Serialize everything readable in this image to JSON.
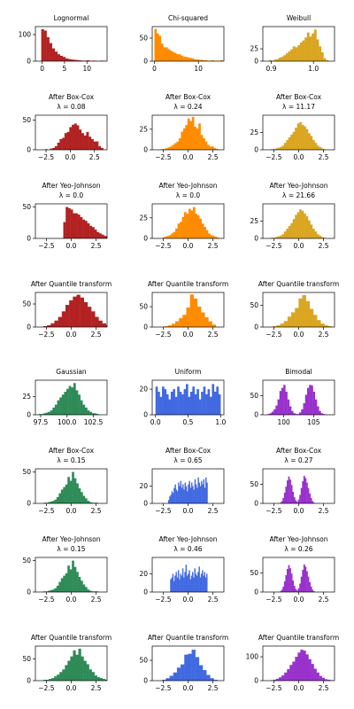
{
  "chart_data": [
    {
      "type": "bar",
      "title": [
        "Lognormal"
      ],
      "color": "#b22222",
      "xlim": [
        -1.5,
        14.5
      ],
      "ylim": [
        0,
        130
      ],
      "xticks": [
        0,
        5,
        10
      ],
      "xticklabels": [
        "0",
        "5",
        "10"
      ],
      "yticks": [
        0,
        100
      ],
      "yticklabels": [
        "0",
        "100"
      ],
      "binStart": -0.2,
      "binWidth": 0.6,
      "values": [
        120,
        115,
        90,
        68,
        48,
        36,
        26,
        20,
        16,
        10,
        8,
        6,
        5,
        4,
        3,
        2,
        2,
        3,
        1,
        2,
        1,
        0,
        2,
        1
      ]
    },
    {
      "type": "bar",
      "title": [
        "Chi-squared"
      ],
      "color": "#ff8c00",
      "xlim": [
        -0.5,
        15.8
      ],
      "ylim": [
        0,
        75
      ],
      "xticks": [
        0,
        10
      ],
      "xticklabels": [
        "0",
        "10"
      ],
      "yticks": [
        0,
        50
      ],
      "yticklabels": [
        "0",
        "50"
      ],
      "binStart": 0.0,
      "binWidth": 0.5,
      "values": [
        70,
        60,
        55,
        38,
        30,
        30,
        26,
        23,
        20,
        18,
        15,
        15,
        12,
        10,
        9,
        8,
        7,
        6,
        4,
        4,
        3,
        3,
        2,
        2,
        1,
        1,
        2,
        1,
        1,
        1,
        2
      ]
    },
    {
      "type": "bar",
      "title": [
        "Weibull"
      ],
      "color": "#daa520",
      "xlim": [
        0.88,
        1.05
      ],
      "ylim": [
        0,
        70
      ],
      "xticks": [
        0.9,
        1.0
      ],
      "xticklabels": [
        "0.9",
        "1.0"
      ],
      "yticks": [
        0,
        25
      ],
      "yticklabels": [
        "0",
        "25"
      ],
      "binStart": 0.895,
      "binWidth": 0.0056,
      "values": [
        2,
        1,
        3,
        4,
        7,
        9,
        12,
        16,
        20,
        24,
        30,
        28,
        32,
        38,
        42,
        48,
        58,
        50,
        56,
        64,
        44,
        30,
        18,
        6,
        2
      ]
    },
    {
      "type": "bar",
      "title": [
        "After Box-Cox",
        "λ = 0.08"
      ],
      "color": "#b22222",
      "xlim": [
        -3.6,
        3.8
      ],
      "ylim": [
        0,
        58
      ],
      "xticks": [
        -2.5,
        0,
        2.5
      ],
      "xticklabels": [
        "−2.5",
        "0.0",
        "2.5"
      ],
      "yticks": [
        0,
        50
      ],
      "yticklabels": [
        "0",
        "50"
      ],
      "binStart": -2.6,
      "binWidth": 0.25,
      "values": [
        1,
        0,
        2,
        3,
        6,
        12,
        18,
        20,
        28,
        30,
        38,
        42,
        44,
        41,
        34,
        28,
        24,
        30,
        22,
        18,
        14,
        14,
        6,
        3
      ]
    },
    {
      "type": "bar",
      "title": [
        "After Box-Cox",
        "λ = 0.24"
      ],
      "color": "#ff8c00",
      "xlim": [
        -3.6,
        3.6
      ],
      "ylim": [
        0,
        42
      ],
      "xticks": [
        -2.5,
        0,
        2.5
      ],
      "xticklabels": [
        "−2.5",
        "0.0",
        "2.5"
      ],
      "yticks": [
        0,
        25
      ],
      "yticklabels": [
        "0",
        "25"
      ],
      "binStart": -2.7,
      "binWidth": 0.22,
      "values": [
        1,
        1,
        2,
        3,
        4,
        6,
        8,
        10,
        14,
        22,
        26,
        30,
        38,
        35,
        40,
        28,
        26,
        32,
        18,
        14,
        10,
        6,
        4,
        4,
        2,
        1
      ]
    },
    {
      "type": "bar",
      "title": [
        "After Box-Cox",
        "λ = 11.17"
      ],
      "color": "#daa520",
      "xlim": [
        -3.6,
        3.6
      ],
      "ylim": [
        0,
        50
      ],
      "xticks": [
        -2.5,
        0,
        2.5
      ],
      "xticklabels": [
        "−2.5",
        "0.0",
        "2.5"
      ],
      "yticks": [
        0,
        25
      ],
      "yticklabels": [
        "0",
        "25"
      ],
      "binStart": -2.8,
      "binWidth": 0.22,
      "values": [
        1,
        1,
        2,
        3,
        4,
        6,
        10,
        14,
        18,
        22,
        26,
        32,
        38,
        40,
        36,
        34,
        30,
        24,
        20,
        14,
        10,
        6,
        4,
        2,
        1
      ]
    },
    {
      "type": "bar",
      "title": [
        "After Yeo-Johnson",
        "λ = 0.0"
      ],
      "color": "#b22222",
      "xlim": [
        -3.6,
        3.6
      ],
      "ylim": [
        0,
        55
      ],
      "xticks": [
        -2.5,
        0,
        2.5
      ],
      "xticklabels": [
        "−2.5",
        "0.0",
        "2.5"
      ],
      "yticks": [
        0,
        50
      ],
      "yticklabels": [
        "0",
        "50"
      ],
      "binStart": -0.8,
      "binWidth": 0.24,
      "values": [
        26,
        50,
        48,
        46,
        40,
        40,
        38,
        34,
        30,
        28,
        24,
        20,
        18,
        14,
        10,
        8,
        6,
        4,
        3,
        2
      ]
    },
    {
      "type": "bar",
      "title": [
        "After Yeo-Johnson",
        "λ = 0.0"
      ],
      "color": "#ff8c00",
      "xlim": [
        -3.6,
        3.6
      ],
      "ylim": [
        0,
        42
      ],
      "xticks": [
        -2.5,
        0,
        2.5
      ],
      "xticklabels": [
        "−2.5",
        "0.0",
        "2.5"
      ],
      "yticks": [
        0,
        25
      ],
      "yticklabels": [
        "0",
        "25"
      ],
      "binStart": -2.6,
      "binWidth": 0.22,
      "values": [
        1,
        2,
        3,
        4,
        6,
        8,
        12,
        18,
        20,
        26,
        32,
        30,
        36,
        34,
        38,
        30,
        28,
        24,
        18,
        14,
        10,
        6,
        4,
        3,
        2,
        1
      ]
    },
    {
      "type": "bar",
      "title": [
        "After Yeo-Johnson",
        "λ = 21.66"
      ],
      "color": "#daa520",
      "xlim": [
        -3.6,
        3.6
      ],
      "ylim": [
        0,
        50
      ],
      "xticks": [
        -2.5,
        0,
        2.5
      ],
      "xticklabels": [
        "−2.5",
        "0.0",
        "2.5"
      ],
      "yticks": [
        0,
        25
      ],
      "yticklabels": [
        "0",
        "25"
      ],
      "binStart": -2.8,
      "binWidth": 0.22,
      "values": [
        1,
        1,
        2,
        3,
        4,
        6,
        10,
        14,
        18,
        22,
        28,
        34,
        38,
        42,
        40,
        36,
        32,
        26,
        20,
        14,
        10,
        6,
        4,
        2,
        1
      ]
    },
    {
      "type": "bar",
      "title": [
        "After Quantile transform"
      ],
      "color": "#b22222",
      "xlim": [
        -3.6,
        3.6
      ],
      "ylim": [
        0,
        75
      ],
      "xticks": [
        -2.5,
        0,
        2.5
      ],
      "xticklabels": [
        "−2.5",
        "0.0",
        "2.5"
      ],
      "yticks": [
        0,
        50
      ],
      "yticklabels": [
        "0",
        "50"
      ],
      "binStart": -2.8,
      "binWidth": 0.37,
      "values": [
        2,
        4,
        8,
        14,
        22,
        34,
        48,
        58,
        66,
        70,
        64,
        54,
        44,
        34,
        22,
        14,
        8,
        4
      ]
    },
    {
      "type": "bar",
      "title": [
        "After Quantile transform"
      ],
      "color": "#ff8c00",
      "xlim": [
        -3.6,
        3.6
      ],
      "ylim": [
        0,
        85
      ],
      "xticks": [
        -2.5,
        0,
        2.5
      ],
      "xticklabels": [
        "−2.5",
        "0.0",
        "2.5"
      ],
      "yticks": [
        0,
        50
      ],
      "yticklabels": [
        "0",
        "50"
      ],
      "binStart": -2.4,
      "binWidth": 0.37,
      "values": [
        2,
        4,
        8,
        14,
        22,
        30,
        48,
        80,
        70,
        50,
        36,
        24,
        14,
        6
      ]
    },
    {
      "type": "bar",
      "title": [
        "After Quantile transform"
      ],
      "color": "#daa520",
      "xlim": [
        -3.6,
        3.6
      ],
      "ylim": [
        0,
        80
      ],
      "xticks": [
        -2.5,
        0,
        2.5
      ],
      "xticklabels": [
        "−2.5",
        "0.0",
        "2.5"
      ],
      "yticks": [
        0,
        50
      ],
      "yticklabels": [
        "0",
        "50"
      ],
      "binStart": -2.6,
      "binWidth": 0.37,
      "values": [
        2,
        4,
        8,
        14,
        24,
        34,
        44,
        66,
        74,
        60,
        42,
        28,
        16,
        8,
        4,
        2
      ]
    },
    {
      "type": "bar",
      "title": [
        "Gaussian"
      ],
      "color": "#2e8b57",
      "xlim": [
        97.0,
        103.8
      ],
      "ylim": [
        0,
        48
      ],
      "xticks": [
        97.5,
        100.0,
        102.5
      ],
      "xticklabels": [
        "97.5",
        "100.0",
        "102.5"
      ],
      "yticks": [
        0,
        25
      ],
      "yticklabels": [
        "0",
        "25"
      ],
      "binStart": 97.3,
      "binWidth": 0.22,
      "values": [
        1,
        1,
        2,
        3,
        4,
        6,
        10,
        14,
        20,
        24,
        28,
        32,
        36,
        40,
        38,
        44,
        34,
        28,
        20,
        14,
        10,
        6,
        4,
        2,
        2,
        1
      ]
    },
    {
      "type": "bar",
      "title": [
        "Uniform"
      ],
      "color": "#4169e1",
      "xlim": [
        -0.05,
        1.05
      ],
      "ylim": [
        0,
        27
      ],
      "xticks": [
        0.0,
        0.5,
        1.0
      ],
      "xticklabels": [
        "0.0",
        "0.5",
        "1.0"
      ],
      "yticks": [
        0,
        20
      ],
      "yticklabels": [
        "0",
        "20"
      ],
      "binStart": 0.0,
      "binWidth": 0.0333,
      "values": [
        22,
        18,
        14,
        22,
        20,
        16,
        12,
        18,
        20,
        14,
        22,
        18,
        16,
        20,
        24,
        14,
        18,
        22,
        16,
        20,
        12,
        18,
        22,
        16,
        20,
        14,
        24,
        18,
        22,
        16
      ]
    },
    {
      "type": "bar",
      "title": [
        "Bimodal"
      ],
      "color": "#9932cc",
      "xlim": [
        96.5,
        108.5
      ],
      "ylim": [
        0,
        90
      ],
      "xticks": [
        100,
        105
      ],
      "xticklabels": [
        "100",
        "105"
      ],
      "yticks": [
        0,
        50
      ],
      "yticklabels": [
        "0",
        "50"
      ],
      "binStart": 97.3,
      "binWidth": 0.33,
      "values": [
        2,
        4,
        8,
        14,
        24,
        40,
        62,
        70,
        78,
        60,
        40,
        22,
        10,
        4,
        2,
        2,
        6,
        14,
        30,
        52,
        70,
        78,
        76,
        60,
        40,
        22,
        10,
        4,
        2,
        1
      ]
    },
    {
      "type": "bar",
      "title": [
        "After Box-Cox",
        "λ = 0.15"
      ],
      "color": "#2e8b57",
      "xlim": [
        -3.6,
        3.6
      ],
      "ylim": [
        0,
        55
      ],
      "xticks": [
        -2.5,
        0,
        2.5
      ],
      "xticklabels": [
        "−2.5",
        "0.0",
        "2.5"
      ],
      "yticks": [
        0,
        50
      ],
      "yticklabels": [
        "0",
        "50"
      ],
      "binStart": -2.8,
      "binWidth": 0.22,
      "values": [
        1,
        1,
        2,
        3,
        4,
        6,
        10,
        16,
        22,
        26,
        30,
        42,
        36,
        50,
        40,
        32,
        24,
        18,
        12,
        8,
        4,
        2,
        1,
        1,
        1
      ]
    },
    {
      "type": "bar",
      "title": [
        "After Box-Cox",
        "λ = 0.65"
      ],
      "color": "#4169e1",
      "xlim": [
        -3.6,
        3.6
      ],
      "ylim": [
        0,
        40
      ],
      "xticks": [
        -2.5,
        0,
        2.5
      ],
      "xticklabels": [
        "−2.5",
        "0.0",
        "2.5"
      ],
      "yticks": [
        0,
        20
      ],
      "yticklabels": [
        "0",
        "20"
      ],
      "binStart": -2.0,
      "binWidth": 0.11,
      "values": [
        4,
        8,
        10,
        14,
        12,
        18,
        22,
        16,
        14,
        24,
        20,
        26,
        18,
        22,
        16,
        24,
        20,
        14,
        22,
        26,
        18,
        24,
        20,
        16,
        28,
        22,
        18,
        30,
        24,
        20,
        26,
        22,
        28,
        18,
        30,
        24
      ]
    },
    {
      "type": "bar",
      "title": [
        "After Box-Cox",
        "λ = 0.27"
      ],
      "color": "#9932cc",
      "xlim": [
        -3.6,
        3.6
      ],
      "ylim": [
        0,
        90
      ],
      "xticks": [
        -2.5,
        0,
        2.5
      ],
      "xticklabels": [
        "−2.5",
        "0.0",
        "2.5"
      ],
      "yticks": [
        0,
        50
      ],
      "yticklabels": [
        "0",
        "50"
      ],
      "binStart": -1.9,
      "binWidth": 0.14,
      "values": [
        2,
        6,
        14,
        28,
        44,
        60,
        70,
        62,
        48,
        30,
        16,
        8,
        4,
        10,
        22,
        40,
        58,
        72,
        66,
        54,
        40,
        26,
        14,
        6,
        2
      ]
    },
    {
      "type": "bar",
      "title": [
        "After Yeo-Johnson",
        "λ = 0.15"
      ],
      "color": "#2e8b57",
      "xlim": [
        -3.6,
        3.6
      ],
      "ylim": [
        0,
        55
      ],
      "xticks": [
        -2.5,
        0,
        2.5
      ],
      "xticklabels": [
        "−2.5",
        "0.0",
        "2.5"
      ],
      "yticks": [
        0,
        50
      ],
      "yticklabels": [
        "0",
        "50"
      ],
      "binStart": -2.8,
      "binWidth": 0.22,
      "values": [
        1,
        1,
        2,
        3,
        4,
        6,
        10,
        16,
        22,
        26,
        30,
        42,
        36,
        50,
        40,
        32,
        24,
        18,
        12,
        8,
        4,
        2,
        1,
        1,
        1
      ]
    },
    {
      "type": "bar",
      "title": [
        "After Yeo-Johnson",
        "λ = 0.46"
      ],
      "color": "#4169e1",
      "xlim": [
        -3.6,
        3.6
      ],
      "ylim": [
        0,
        38
      ],
      "xticks": [
        -2.5,
        0,
        2.5
      ],
      "xticklabels": [
        "−2.5",
        "0.0",
        "2.5"
      ],
      "yticks": [
        0,
        20
      ],
      "yticklabels": [
        "0",
        "20"
      ],
      "binStart": -1.8,
      "binWidth": 0.11,
      "values": [
        14,
        16,
        20,
        12,
        18,
        22,
        16,
        24,
        14,
        20,
        18,
        26,
        16,
        22,
        30,
        18,
        20,
        24,
        14,
        18,
        22,
        16,
        26,
        20,
        18,
        22,
        28,
        16,
        20,
        24,
        18,
        22,
        16,
        20
      ]
    },
    {
      "type": "bar",
      "title": [
        "After Yeo-Johnson",
        "λ = 0.26"
      ],
      "color": "#9932cc",
      "xlim": [
        -3.6,
        3.6
      ],
      "ylim": [
        0,
        90
      ],
      "xticks": [
        -2.5,
        0,
        2.5
      ],
      "xticklabels": [
        "−2.5",
        "0.0",
        "2.5"
      ],
      "yticks": [
        0,
        50
      ],
      "yticklabels": [
        "0",
        "50"
      ],
      "binStart": -1.9,
      "binWidth": 0.14,
      "values": [
        2,
        6,
        14,
        28,
        44,
        60,
        70,
        62,
        48,
        30,
        16,
        8,
        4,
        10,
        22,
        40,
        58,
        72,
        66,
        54,
        40,
        26,
        14,
        6,
        2
      ]
    },
    {
      "type": "bar",
      "title": [
        "After Quantile transform"
      ],
      "color": "#2e8b57",
      "xlim": [
        -3.6,
        3.6
      ],
      "ylim": [
        0,
        80
      ],
      "xticks": [
        -2.5,
        0,
        2.5
      ],
      "xticklabels": [
        "−2.5",
        "0.0",
        "2.5"
      ],
      "yticks": [
        0,
        50
      ],
      "yticklabels": [
        "0",
        "50"
      ],
      "binStart": -2.8,
      "binWidth": 0.27,
      "values": [
        2,
        2,
        4,
        6,
        10,
        14,
        20,
        26,
        36,
        46,
        56,
        70,
        60,
        74,
        56,
        46,
        38,
        26,
        20,
        12,
        8,
        6,
        4,
        2
      ]
    },
    {
      "type": "bar",
      "title": [
        "After Quantile transform"
      ],
      "color": "#4169e1",
      "xlim": [
        -3.6,
        3.6
      ],
      "ylim": [
        0,
        85
      ],
      "xticks": [
        -2.5,
        0,
        2.5
      ],
      "xticklabels": [
        "−2.5",
        "0.0",
        "2.5"
      ],
      "yticks": [
        0,
        50
      ],
      "yticklabels": [
        "0",
        "50"
      ],
      "binStart": -2.6,
      "binWidth": 0.37,
      "values": [
        2,
        6,
        12,
        20,
        32,
        40,
        64,
        66,
        76,
        58,
        38,
        26,
        14,
        6,
        2
      ]
    },
    {
      "type": "bar",
      "title": [
        "After Quantile transform"
      ],
      "color": "#9932cc",
      "xlim": [
        -3.6,
        3.6
      ],
      "ylim": [
        0,
        145
      ],
      "xticks": [
        -2.5,
        0,
        2.5
      ],
      "xticklabels": [
        "−2.5",
        "0.0",
        "2.5"
      ],
      "yticks": [
        0,
        100
      ],
      "yticklabels": [
        "0",
        "100"
      ],
      "binStart": -2.8,
      "binWidth": 0.27,
      "values": [
        2,
        4,
        8,
        14,
        22,
        34,
        48,
        66,
        80,
        100,
        118,
        130,
        126,
        110,
        90,
        70,
        50,
        34,
        20,
        12,
        6,
        4,
        2,
        1
      ]
    }
  ]
}
